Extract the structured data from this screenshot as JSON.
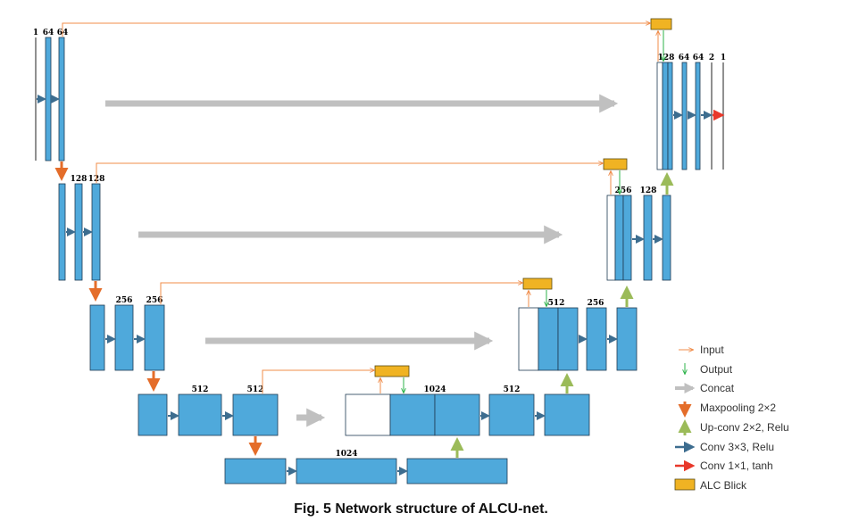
{
  "colors": {
    "block": "#4fa9db",
    "block_border": "#1f3a52",
    "conv_arrow": "#3d6d8f",
    "maxpool_arrow": "#e46d2a",
    "upconv_arrow": "#9bbb59",
    "concat_arrow": "#c0c0c0",
    "input_line": "#f08c4a",
    "output_line": "#2db34a",
    "final_conv_arrow": "#e8382a",
    "alc_block": "#f0b323"
  },
  "channel_labels": {
    "l1_in": "1",
    "l1_c1": "64",
    "l1_c2": "64",
    "l2_c1": "128",
    "l2_c2": "128",
    "l3_c1": "256",
    "l3_c2": "256",
    "l4_c1": "512",
    "l4_c2": "512",
    "bottom": "1024",
    "u4_concat": "1024",
    "u4_out": "512",
    "u3_concat": "512",
    "u3_out": "256",
    "u2_concat": "256",
    "u2_out": "128",
    "u1_concat": "128",
    "u1_c1": "64",
    "u1_c2": "64",
    "u1_c3": "2",
    "u1_out": "1"
  },
  "legend": [
    {
      "label": "Input",
      "icon": "input-arrow-icon"
    },
    {
      "label": "Output",
      "icon": "output-arrow-icon"
    },
    {
      "label": "Concat",
      "icon": "concat-arrow-icon"
    },
    {
      "label": "Maxpooling 2×2",
      "icon": "maxpool-arrow-icon"
    },
    {
      "label": "Up-conv 2×2, Relu",
      "icon": "upconv-arrow-icon"
    },
    {
      "label": "Conv 3×3, Relu",
      "icon": "conv-arrow-icon"
    },
    {
      "label": "Conv 1×1, tanh",
      "icon": "final-conv-arrow-icon"
    },
    {
      "label": "ALC Blick",
      "icon": "alc-block-icon"
    }
  ],
  "caption": "Fig. 5 Network structure of ALCU-net."
}
